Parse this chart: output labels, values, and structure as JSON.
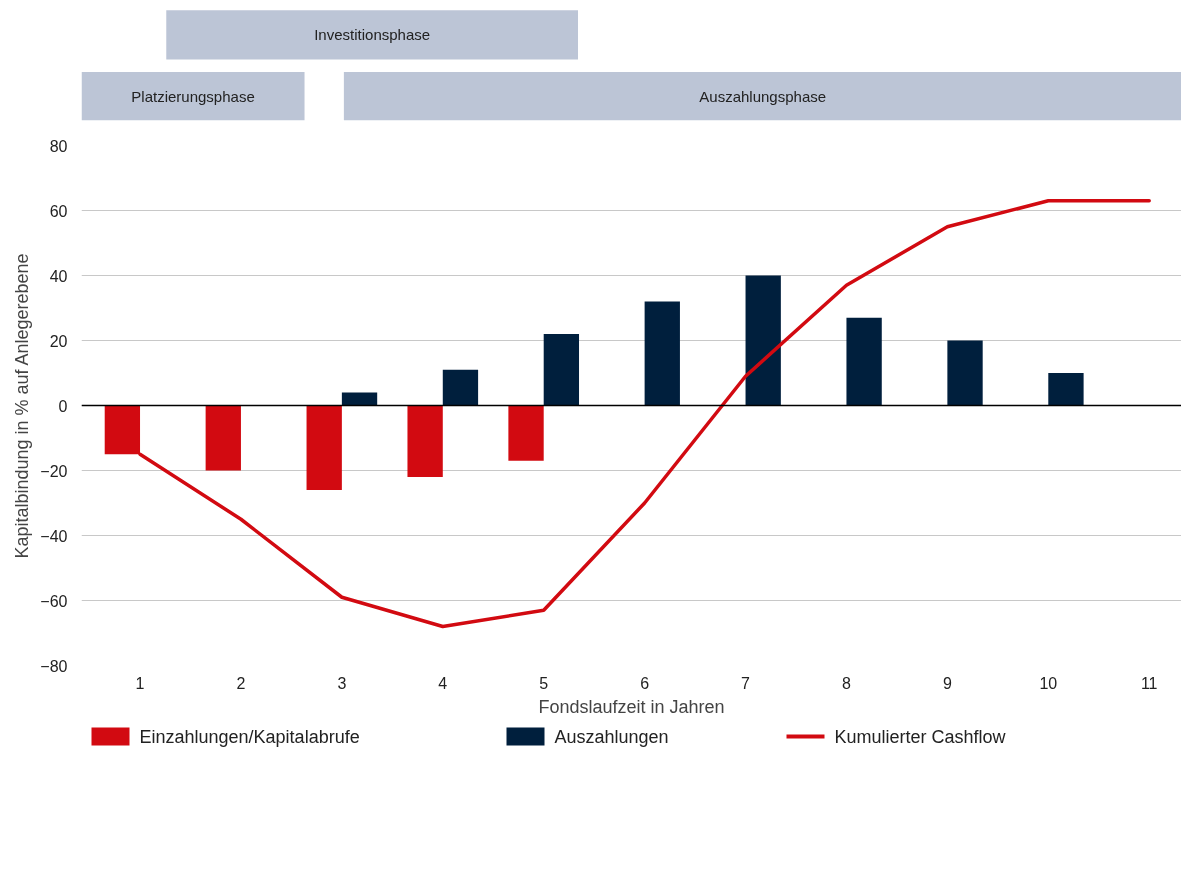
{
  "chart_data": {
    "type": "bar",
    "xlabel": "Fondslaufzeit in Jahren",
    "ylabel": "Kapitalbindung in % auf Anlegerebene",
    "categories": [
      "1",
      "2",
      "3",
      "4",
      "5",
      "6",
      "7",
      "8",
      "9",
      "10",
      "11"
    ],
    "series": [
      {
        "name": "Einzahlungen/Kapitalabrufe",
        "color": "#d20a11",
        "values": [
          -15,
          -20,
          -26,
          -22,
          -17,
          null,
          null,
          null,
          null,
          null,
          null
        ]
      },
      {
        "name": "Auszahlungen",
        "color": "#001f3d",
        "values": [
          null,
          null,
          4,
          11,
          22,
          32,
          40,
          27,
          20,
          10,
          null
        ]
      },
      {
        "name": "Kumulierter Cashflow",
        "type": "line",
        "color": "#d20a11",
        "values": [
          -15,
          -35,
          -59,
          -68,
          -63,
          -30,
          9,
          37,
          55,
          63,
          63
        ]
      }
    ],
    "ylim": [
      -80,
      80
    ],
    "yticks": [
      -80,
      -60,
      -40,
      -20,
      0,
      20,
      40,
      60,
      80
    ],
    "grid": "y",
    "legend": "bottom",
    "line_style": "solid",
    "ref_lines": [
      {
        "axis": "y",
        "value": 0,
        "color": "#000000"
      }
    ],
    "annotations": [
      "Investitionsphase",
      "Platzierungsphase",
      "Auszahlungsphase"
    ]
  }
}
